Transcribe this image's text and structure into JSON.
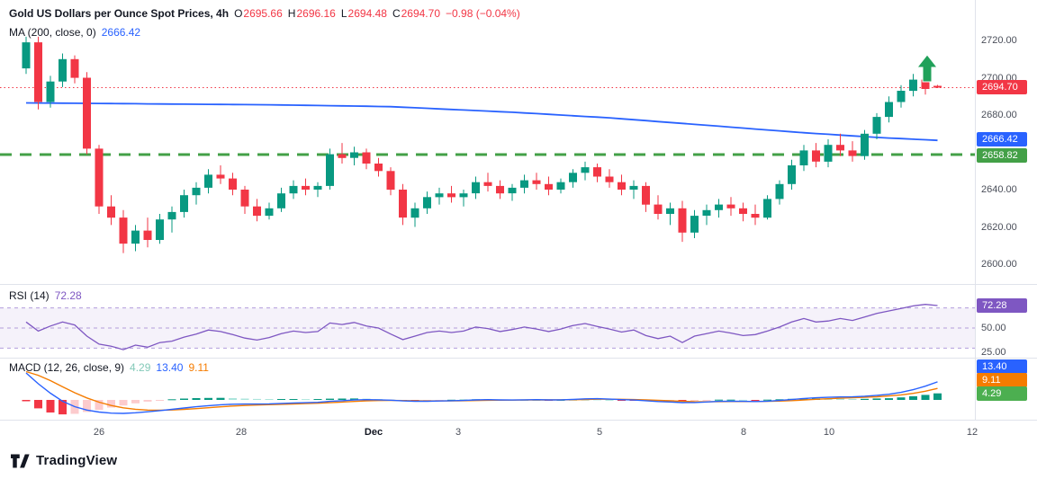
{
  "legend": {
    "title": "Gold US Dollars per Ounce Spot Prices, 4h",
    "o_label": "O",
    "o_value": "2695.66",
    "h_label": "H",
    "h_value": "2696.16",
    "l_label": "L",
    "l_value": "2694.48",
    "c_label": "C",
    "c_value": "2694.70",
    "change": "−0.98 (−0.04%)",
    "ma_label": "MA (200, close, 0)",
    "ma_value": "2666.42",
    "rsi_label": "RSI (14)",
    "rsi_value": "72.28",
    "macd_label": "MACD (12, 26, close, 9)",
    "macd_hist_value": "4.29",
    "macd_value": "13.40",
    "macd_signal_value": "9.11"
  },
  "badges": {
    "last": "2694.70",
    "ma": "2666.42",
    "level": "2658.82",
    "rsi": "72.28",
    "macd": "13.40",
    "signal": "9.11",
    "hist": "4.29"
  },
  "watermark": {
    "brand": "TradingView"
  },
  "colors": {
    "up": "#089981",
    "down": "#F23645",
    "ma": "#2962FF",
    "rsi": "#7E57C2",
    "rsi_band": "rgba(126,87,194,0.08)",
    "rsi_level": "#B39DDB",
    "macd": "#2962FF",
    "signal": "#F57C00",
    "hist_up": "#089981",
    "hist_up_weak": "#ACE5DC",
    "hist_down": "#F23645",
    "hist_down_weak": "#FCCBCD",
    "hist_legend": "#83C9B8",
    "level": "#43A047",
    "arrow": "#21A15A",
    "divider": "#E0E3EB",
    "badge_last": "#F23645",
    "badge_ma": "#2962FF",
    "badge_level": "#43A047",
    "badge_rsi": "#7E57C2",
    "badge_macd": "#2962FF",
    "badge_signal": "#F57C00",
    "badge_hist": "#4CAF50"
  },
  "chart_data": {
    "type": "candlestick",
    "title": "Gold US Dollars per Ounce Spot Prices",
    "timeframe": "4h",
    "last_bar": {
      "open": 2695.66,
      "high": 2696.16,
      "low": 2694.48,
      "close": 2694.7,
      "change": -0.98,
      "change_pct": -0.04
    },
    "ylim": [
      2597,
      2725
    ],
    "price_gridlines": [
      2720,
      2700,
      2680,
      2660,
      2640,
      2620,
      2600
    ],
    "price_tick_labels": [
      "2720.00",
      "2700.00",
      "2680.00",
      "2660.00",
      "2640.00",
      "2620.00",
      "2600.00"
    ],
    "time_tick_labels": [
      "26",
      "28",
      "Dec",
      "3",
      "5",
      "8",
      "10",
      "12"
    ],
    "levels": {
      "last_price": 2694.7,
      "ma200": 2666.42,
      "support": 2658.82
    },
    "candles": [
      [
        2705,
        2722,
        2702,
        2719
      ],
      [
        2719,
        2722,
        2683,
        2687
      ],
      [
        2687,
        2701,
        2684,
        2698
      ],
      [
        2698,
        2713,
        2695,
        2710
      ],
      [
        2710,
        2712,
        2697,
        2700
      ],
      [
        2700,
        2703,
        2659,
        2662
      ],
      [
        2662,
        2664,
        2627,
        2631
      ],
      [
        2631,
        2637,
        2621,
        2625
      ],
      [
        2625,
        2629,
        2606,
        2611
      ],
      [
        2611,
        2621,
        2607,
        2618
      ],
      [
        2618,
        2625,
        2609,
        2613
      ],
      [
        2613,
        2627,
        2611,
        2624
      ],
      [
        2624,
        2631,
        2617,
        2628
      ],
      [
        2628,
        2640,
        2625,
        2637
      ],
      [
        2637,
        2644,
        2632,
        2641
      ],
      [
        2641,
        2651,
        2638,
        2648
      ],
      [
        2648,
        2653,
        2643,
        2646
      ],
      [
        2646,
        2649,
        2637,
        2640
      ],
      [
        2640,
        2642,
        2627,
        2631
      ],
      [
        2631,
        2635,
        2623,
        2626
      ],
      [
        2626,
        2633,
        2624,
        2630
      ],
      [
        2630,
        2641,
        2628,
        2638
      ],
      [
        2638,
        2645,
        2635,
        2642
      ],
      [
        2642,
        2646,
        2637,
        2640
      ],
      [
        2640,
        2644,
        2636,
        2642
      ],
      [
        2642,
        2662,
        2640,
        2659
      ],
      [
        2659,
        2665,
        2654,
        2657
      ],
      [
        2657,
        2663,
        2653,
        2660
      ],
      [
        2660,
        2662,
        2651,
        2654
      ],
      [
        2654,
        2657,
        2647,
        2650
      ],
      [
        2650,
        2652,
        2637,
        2640
      ],
      [
        2640,
        2643,
        2621,
        2625
      ],
      [
        2625,
        2633,
        2620,
        2630
      ],
      [
        2630,
        2639,
        2627,
        2636
      ],
      [
        2636,
        2641,
        2632,
        2638
      ],
      [
        2638,
        2642,
        2633,
        2636
      ],
      [
        2636,
        2640,
        2631,
        2638
      ],
      [
        2638,
        2647,
        2635,
        2644
      ],
      [
        2644,
        2649,
        2639,
        2642
      ],
      [
        2642,
        2645,
        2635,
        2638
      ],
      [
        2638,
        2643,
        2634,
        2641
      ],
      [
        2641,
        2648,
        2638,
        2645
      ],
      [
        2645,
        2649,
        2640,
        2643
      ],
      [
        2643,
        2647,
        2637,
        2640
      ],
      [
        2640,
        2646,
        2638,
        2644
      ],
      [
        2644,
        2651,
        2641,
        2649
      ],
      [
        2649,
        2655,
        2645,
        2652
      ],
      [
        2652,
        2654,
        2644,
        2647
      ],
      [
        2647,
        2651,
        2641,
        2644
      ],
      [
        2644,
        2648,
        2637,
        2640
      ],
      [
        2640,
        2645,
        2635,
        2642
      ],
      [
        2642,
        2644,
        2628,
        2632
      ],
      [
        2632,
        2637,
        2624,
        2627
      ],
      [
        2627,
        2633,
        2621,
        2630
      ],
      [
        2630,
        2634,
        2612,
        2617
      ],
      [
        2617,
        2629,
        2614,
        2626
      ],
      [
        2626,
        2632,
        2621,
        2629
      ],
      [
        2629,
        2635,
        2625,
        2632
      ],
      [
        2632,
        2636,
        2626,
        2630
      ],
      [
        2630,
        2633,
        2623,
        2627
      ],
      [
        2627,
        2632,
        2621,
        2625
      ],
      [
        2625,
        2637,
        2624,
        2635
      ],
      [
        2635,
        2645,
        2632,
        2643
      ],
      [
        2643,
        2656,
        2640,
        2653
      ],
      [
        2653,
        2664,
        2650,
        2661
      ],
      [
        2661,
        2665,
        2652,
        2655
      ],
      [
        2655,
        2667,
        2652,
        2664
      ],
      [
        2664,
        2670,
        2658,
        2661
      ],
      [
        2661,
        2666,
        2655,
        2658
      ],
      [
        2658,
        2672,
        2656,
        2670
      ],
      [
        2670,
        2681,
        2667,
        2679
      ],
      [
        2679,
        2690,
        2676,
        2687
      ],
      [
        2687,
        2696,
        2684,
        2693
      ],
      [
        2693,
        2702,
        2690,
        2699
      ],
      [
        2699,
        2701,
        2691,
        2694
      ],
      [
        2695.66,
        2696.16,
        2694.48,
        2694.7
      ]
    ],
    "ma200_points": [
      [
        0,
        2686.5
      ],
      [
        20,
        2685.5
      ],
      [
        30,
        2684.5
      ],
      [
        40,
        2681.5
      ],
      [
        48,
        2678.5
      ],
      [
        56,
        2674.5
      ],
      [
        64,
        2670.5
      ],
      [
        70,
        2668
      ],
      [
        75,
        2666.42
      ]
    ],
    "rsi": {
      "period": 14,
      "value": 72.28,
      "levels": [
        70,
        50,
        30
      ],
      "band": [
        30,
        70
      ],
      "tick_labels": [
        "50.00",
        "25.00"
      ],
      "series": [
        56,
        47,
        52,
        56,
        53,
        42,
        34,
        32,
        28.5,
        33,
        31,
        35.5,
        37,
        41,
        44,
        48,
        46.5,
        43.5,
        40,
        38,
        40.5,
        44.5,
        47,
        45.5,
        46.5,
        55,
        53.5,
        55.5,
        52,
        50,
        44,
        38.5,
        42,
        45.5,
        47,
        45.5,
        47,
        51,
        49.5,
        46.5,
        48.5,
        51,
        49,
        46.5,
        49,
        52.5,
        54.5,
        51.5,
        49,
        46,
        48,
        42.5,
        39.5,
        42,
        35.5,
        42,
        44.5,
        47,
        45,
        42.5,
        43.5,
        47,
        51,
        56,
        59.5,
        56,
        57,
        59.5,
        57.5,
        61,
        64.5,
        67,
        69.5,
        72,
        73.5,
        72.28
      ]
    },
    "macd": {
      "fast": 12,
      "slow": 26,
      "source": "close",
      "signal_period": 9,
      "macd_value": 13.4,
      "signal_value": 9.11,
      "hist_value": 4.29,
      "signal_seed": 21,
      "signal_smoothing": 0.3,
      "series": [
        20,
        12,
        5,
        -1,
        -5,
        -7.5,
        -9,
        -9.8,
        -10,
        -9.5,
        -8.8,
        -7.9,
        -7,
        -6,
        -5.1,
        -4.3,
        -3.6,
        -3.2,
        -3.1,
        -3.1,
        -2.9,
        -2.6,
        -2.3,
        -2.1,
        -1.8,
        -1.1,
        -0.6,
        -0.1,
        0.2,
        0.1,
        -0.2,
        -0.7,
        -1,
        -1,
        -0.8,
        -0.6,
        -0.4,
        0,
        0.2,
        0,
        -0.1,
        0.1,
        0.2,
        0,
        0.1,
        0.4,
        0.8,
        0.9,
        0.6,
        0.2,
        -0.1,
        -0.6,
        -1.2,
        -1.5,
        -2,
        -1.9,
        -1.5,
        -1.1,
        -1,
        -1.1,
        -1.2,
        -0.9,
        -0.4,
        0.3,
        1.1,
        1.6,
        1.9,
        2.2,
        2.3,
        2.7,
        3.4,
        4.2,
        5.6,
        7.6,
        10.2,
        13.4
      ]
    }
  }
}
